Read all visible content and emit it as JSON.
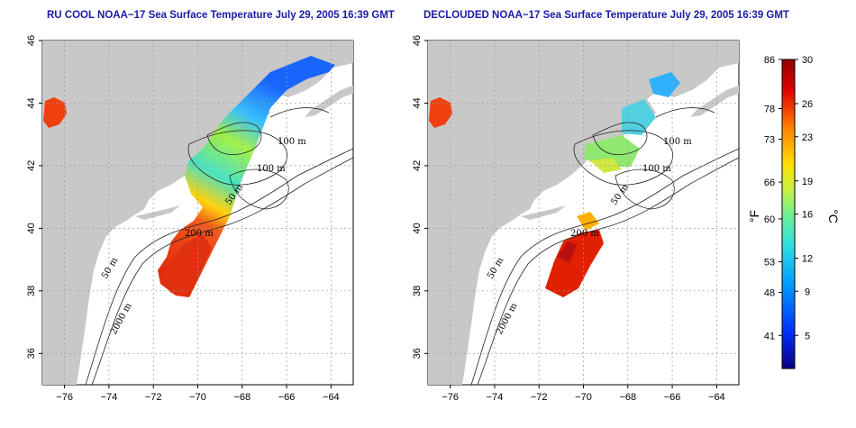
{
  "titles": {
    "left": "RU COOL NOAA−17 Sea Surface Temperature July 29, 2005 16:39 GMT",
    "right": "DECLOUDED NOAA−17 Sea Surface Temperature July 29, 2005 16:39 GMT"
  },
  "map": {
    "lon_range": [
      -77,
      -63
    ],
    "lat_range": [
      35,
      46
    ],
    "lon_ticks": [
      -76,
      -74,
      -72,
      -70,
      -68,
      -66,
      -64
    ],
    "lat_ticks": [
      36,
      38,
      40,
      42,
      44,
      46
    ],
    "contour_labels_left": [
      "100 m",
      "100 m",
      "50 m",
      "200 m",
      "50 m",
      "2000 m"
    ],
    "contour_labels_right": [
      "100 m",
      "100 m",
      "50 m",
      "200 m",
      "50 m",
      "2000 m"
    ]
  },
  "colorbar": {
    "celsius_ticks": [
      30,
      26,
      23,
      19,
      16,
      12,
      9,
      5
    ],
    "fahrenheit_ticks": [
      86,
      78,
      73,
      66,
      60,
      53,
      48,
      41
    ],
    "celsius_label": "°C",
    "fahrenheit_label": "°F",
    "range_c": [
      2,
      30
    ],
    "colors": [
      "#08007a",
      "#0033ff",
      "#0099ff",
      "#33e6e6",
      "#66ff99",
      "#ccff33",
      "#ffe600",
      "#ff8000",
      "#e60000",
      "#990000"
    ]
  },
  "tick_labels": {
    "lon": [
      "−76",
      "−74",
      "−72",
      "−70",
      "−68",
      "−66",
      "−64"
    ],
    "lat": [
      "36",
      "38",
      "40",
      "42",
      "44",
      "46"
    ]
  }
}
